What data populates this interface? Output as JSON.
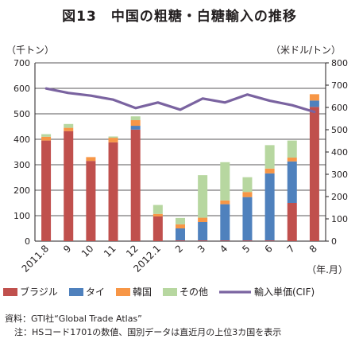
{
  "title": "図13　中国の粗糖・白糖輸入の推移",
  "source": "資料：GTI社“Global Trade Atlas”",
  "note": "注：HSコード1701の数値、国別データは直近月の上位3カ国を表示",
  "colors": {
    "brazil": "#c0504d",
    "thailand": "#4f81bd",
    "korea": "#f79646",
    "other": "#b7d7a0",
    "price": "#7a63a0",
    "axis": "#231f20",
    "grid": "#231f20"
  },
  "chart_data": {
    "type": "bar",
    "stacked": true,
    "xlabel": "（年.月）",
    "ylabel": "（千トン）",
    "ylabel_right": "（米ドル/トン）",
    "ylim": [
      0,
      700
    ],
    "ylim_right": [
      0,
      800
    ],
    "yticks": [
      0,
      100,
      200,
      300,
      400,
      500,
      600,
      700
    ],
    "yticks_right": [
      0,
      100,
      200,
      300,
      400,
      500,
      600,
      700,
      800
    ],
    "grid": "horizontal",
    "legend_position": "bottom",
    "categories": [
      "2011.8",
      "9",
      "10",
      "11",
      "12",
      "2012.1",
      "2",
      "3",
      "4",
      "5",
      "6",
      "7",
      "8"
    ],
    "series": [
      {
        "name": "ブラジル",
        "key": "brazil",
        "axis": "left",
        "values": [
          395,
          432,
          315,
          388,
          438,
          97,
          3,
          3,
          3,
          3,
          3,
          150,
          527
        ]
      },
      {
        "name": "タイ",
        "key": "thailand",
        "axis": "left",
        "values": [
          0,
          0,
          0,
          0,
          15,
          0,
          47,
          72,
          142,
          170,
          263,
          163,
          25
        ]
      },
      {
        "name": "韓国",
        "key": "korea",
        "axis": "left",
        "values": [
          15,
          13,
          15,
          18,
          22,
          10,
          16,
          17,
          15,
          20,
          19,
          15,
          25
        ]
      },
      {
        "name": "その他",
        "key": "other",
        "axis": "left",
        "values": [
          10,
          15,
          0,
          5,
          15,
          35,
          25,
          167,
          150,
          58,
          92,
          67,
          0
        ]
      },
      {
        "name": "輸入単価(CIF)",
        "key": "price",
        "axis": "right",
        "type": "line",
        "values": [
          685,
          665,
          653,
          635,
          597,
          622,
          590,
          640,
          622,
          658,
          630,
          610,
          580
        ]
      }
    ]
  }
}
